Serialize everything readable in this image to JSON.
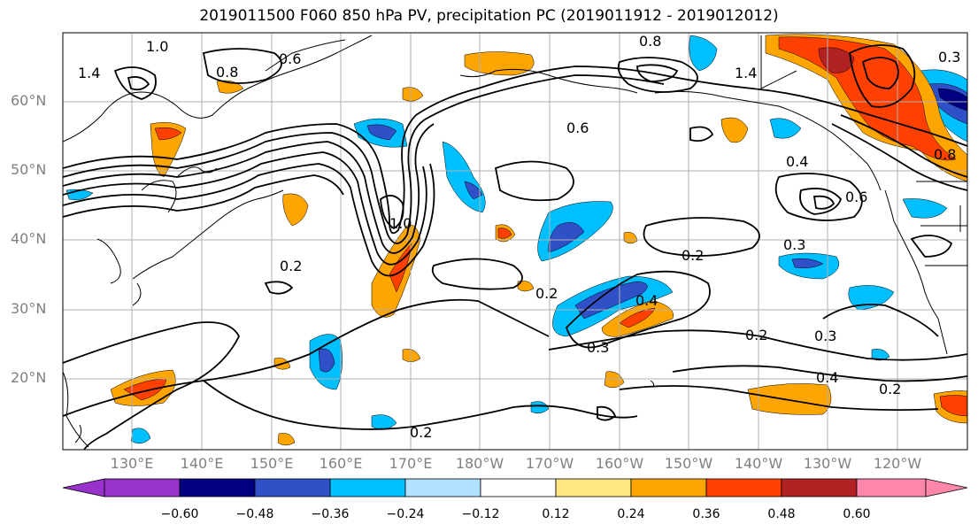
{
  "title": "2019011500 F060 850 hPa PV, precipitation PC (2019011912 - 2019012012)",
  "lat_labels": [
    "60°N",
    "50°N",
    "40°N",
    "30°N",
    "20°N"
  ],
  "lon_labels": [
    "130°E",
    "140°E",
    "150°E",
    "160°E",
    "170°E",
    "180°W",
    "170°W",
    "160°W",
    "150°W",
    "140°W",
    "130°W",
    "120°W"
  ],
  "contour_labels": [
    "1.0",
    "1.4",
    "0.8",
    "0.6",
    "0.8",
    "1.4",
    "0.6",
    "1.0",
    "0.4",
    "0.8",
    "0.3",
    "0.6",
    "0.2",
    "0.3",
    "0.2",
    "0.2",
    "0.4",
    "0.3",
    "0.2",
    "0.3",
    "0.4",
    "0.2",
    "0.2"
  ],
  "colorbar": {
    "ticks": [
      "−0.60",
      "−0.48",
      "−0.36",
      "−0.24",
      "−0.12",
      "0.12",
      "0.24",
      "0.36",
      "0.48",
      "0.60"
    ],
    "colors": [
      "#9932cc",
      "#000080",
      "#3050c8",
      "#00bfff",
      "#b0e2ff",
      "#ffffff",
      "#ffe680",
      "#ffa500",
      "#ff4000",
      "#b22222",
      "#ff88aa"
    ]
  }
}
